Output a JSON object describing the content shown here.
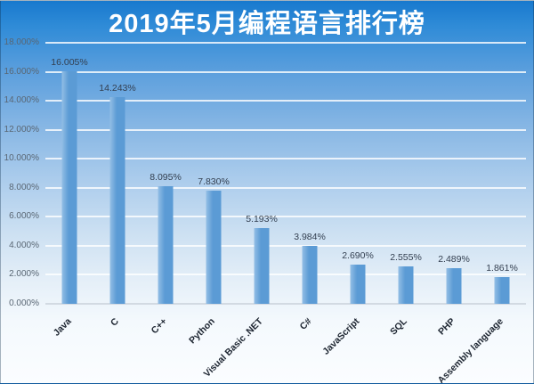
{
  "title": "2019年5月编程语言排行榜",
  "colors": {
    "bar": "#5B9BD5",
    "bar_highlight": "#93BEE5",
    "title_text": "#FFFFFF",
    "data_label": "#333F50",
    "axis_label": "#596673",
    "x_label": "#1C2430",
    "gridline": "rgba(255,255,255,0.8)",
    "baseline": "#D2DAE2",
    "bg_top": "#1879CE",
    "bg_bottom": "#FBFDFF"
  },
  "chart_data": {
    "type": "bar",
    "title": "2019年5月编程语言排行榜",
    "categories": [
      "Java",
      "C",
      "C++",
      "Python",
      "Visual Basic .NET",
      "C#",
      "JavaScript",
      "SQL",
      "PHP",
      "Assembly language"
    ],
    "values": [
      16.005,
      14.243,
      8.095,
      7.83,
      5.193,
      3.984,
      2.69,
      2.555,
      2.489,
      1.861
    ],
    "value_labels": [
      "16.005%",
      "14.243%",
      "8.095%",
      "7.830%",
      "5.193%",
      "3.984%",
      "2.690%",
      "2.555%",
      "2.489%",
      "1.861%"
    ],
    "xlabel": "",
    "ylabel": "",
    "ylim": [
      0,
      18
    ],
    "ytick_step": 2,
    "ytick_labels": [
      "0.000%",
      "2.000%",
      "4.000%",
      "6.000%",
      "8.000%",
      "10.000%",
      "12.000%",
      "14.000%",
      "16.000%",
      "18.000%"
    ],
    "grid": true,
    "legend": false,
    "x_label_rotation": -45
  }
}
